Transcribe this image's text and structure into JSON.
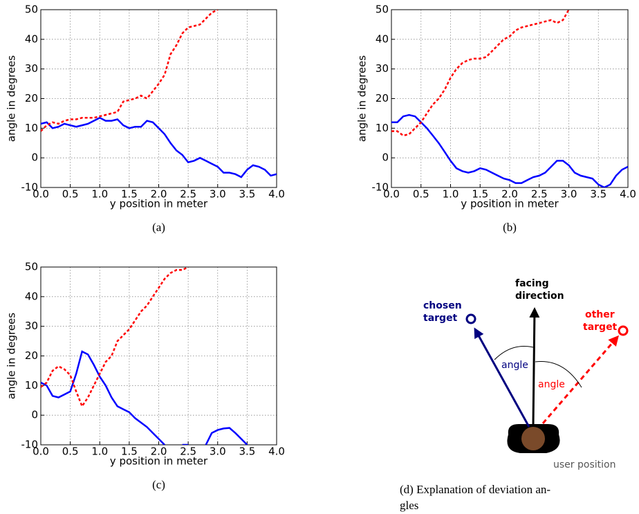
{
  "chart_data": [
    {
      "type": "line",
      "xlabel": "y position in meter",
      "ylabel": "angle in degrees",
      "caption": "(a)",
      "x": [
        0,
        0.1,
        0.2,
        0.3,
        0.4,
        0.5,
        0.6,
        0.7,
        0.8,
        0.9,
        1.0,
        1.1,
        1.2,
        1.3,
        1.4,
        1.5,
        1.6,
        1.7,
        1.8,
        1.9,
        2.0,
        2.1,
        2.2,
        2.3,
        2.4,
        2.5,
        2.6,
        2.7,
        2.8,
        2.9,
        3.0,
        3.1,
        3.2,
        3.3,
        3.4,
        3.5,
        3.6,
        3.7,
        3.8,
        3.9,
        4.0
      ],
      "series": [
        {
          "color": "#0000ff",
          "style": "solid",
          "values": [
            11.5,
            12,
            10,
            10.5,
            11.5,
            11,
            10.5,
            11,
            11.5,
            12.5,
            13.5,
            12.5,
            12.5,
            13,
            11,
            10,
            10.5,
            10.5,
            12.5,
            12,
            10,
            8,
            5,
            2.5,
            1,
            -1.5,
            -1,
            0,
            -1,
            -2,
            -3,
            -5,
            -5,
            -5.5,
            -6.5,
            -4,
            -2.5,
            -3,
            -4,
            -6,
            -5.5
          ]
        },
        {
          "color": "#ff0000",
          "style": "dashed",
          "values": [
            9,
            11,
            12,
            11.5,
            12.5,
            13,
            13,
            13.5,
            13.5,
            13.5,
            14,
            14.5,
            15,
            15.5,
            19,
            19.5,
            20,
            21,
            20,
            22.5,
            25,
            28,
            35,
            38,
            42,
            44,
            44.5,
            45,
            47,
            49,
            50,
            null,
            null,
            null,
            null,
            null,
            null,
            null,
            null,
            null,
            null
          ]
        }
      ],
      "xlim": [
        0,
        4
      ],
      "ylim": [
        -10,
        50
      ],
      "xticks": [
        {
          "value": 0,
          "label": "0.0"
        },
        {
          "value": 0.5,
          "label": "0.5"
        },
        {
          "value": 1,
          "label": "1.0"
        },
        {
          "value": 1.5,
          "label": "1.5"
        },
        {
          "value": 2,
          "label": "2.0"
        },
        {
          "value": 2.5,
          "label": "2.5"
        },
        {
          "value": 3,
          "label": "3.0"
        },
        {
          "value": 3.5,
          "label": "3.5"
        },
        {
          "value": 4,
          "label": "4.0"
        }
      ],
      "yticks": [
        -10,
        0,
        10,
        20,
        30,
        40,
        50
      ],
      "grid": true
    },
    {
      "type": "line",
      "xlabel": "y position in meter",
      "ylabel": "angle in degrees",
      "caption": "(b)",
      "x": [
        0,
        0.1,
        0.2,
        0.3,
        0.4,
        0.5,
        0.6,
        0.7,
        0.8,
        0.9,
        1.0,
        1.1,
        1.2,
        1.3,
        1.4,
        1.5,
        1.6,
        1.7,
        1.8,
        1.9,
        2.0,
        2.1,
        2.2,
        2.3,
        2.4,
        2.5,
        2.6,
        2.7,
        2.8,
        2.9,
        3.0,
        3.1,
        3.2,
        3.3,
        3.4,
        3.5,
        3.6,
        3.7,
        3.8,
        3.9,
        4.0
      ],
      "series": [
        {
          "color": "#0000ff",
          "style": "solid",
          "values": [
            12,
            12,
            14,
            14.5,
            14,
            12,
            10,
            7.5,
            5,
            2,
            -1,
            -3.5,
            -4.5,
            -5,
            -4.5,
            -3.5,
            -4,
            -5,
            -6,
            -7,
            -7.5,
            -8.5,
            -8.5,
            -7.5,
            -6.5,
            -6,
            -5,
            -3,
            -1,
            -1,
            -2.5,
            -5,
            -6,
            -6.5,
            -7,
            -9,
            -10,
            -9,
            -6,
            -4,
            -3
          ]
        },
        {
          "color": "#ff0000",
          "style": "dashed",
          "values": [
            9,
            9,
            7.5,
            8,
            10,
            12,
            15,
            18,
            20,
            23,
            27,
            30,
            32,
            33,
            33.5,
            33.5,
            34,
            36,
            38,
            40,
            41,
            43,
            44,
            44.5,
            45,
            45.5,
            46,
            46.5,
            45.5,
            46.5,
            50,
            null,
            null,
            null,
            null,
            null,
            null,
            null,
            null,
            null,
            null
          ]
        }
      ],
      "xlim": [
        0,
        4
      ],
      "ylim": [
        -10,
        50
      ],
      "xticks": [
        {
          "value": 0,
          "label": "0.0"
        },
        {
          "value": 0.5,
          "label": "0.5"
        },
        {
          "value": 1,
          "label": "1.0"
        },
        {
          "value": 1.5,
          "label": "1.5"
        },
        {
          "value": 2,
          "label": "2.0"
        },
        {
          "value": 2.5,
          "label": "2.5"
        },
        {
          "value": 3,
          "label": "3.0"
        },
        {
          "value": 3.5,
          "label": "3.5"
        },
        {
          "value": 4,
          "label": "4.0"
        }
      ],
      "yticks": [
        -10,
        0,
        10,
        20,
        30,
        40,
        50
      ],
      "grid": true
    },
    {
      "type": "line",
      "xlabel": "y position in meter",
      "ylabel": "angle in degrees",
      "caption": "(c)",
      "x": [
        0,
        0.1,
        0.2,
        0.3,
        0.4,
        0.5,
        0.6,
        0.7,
        0.8,
        0.9,
        1.0,
        1.1,
        1.2,
        1.3,
        1.4,
        1.5,
        1.6,
        1.7,
        1.8,
        1.9,
        2.0,
        2.1,
        2.2,
        2.3,
        2.4,
        2.5,
        2.6,
        2.7,
        2.8,
        2.9,
        3.0,
        3.1,
        3.2,
        3.3,
        3.4,
        3.5,
        3.6,
        3.7,
        3.8,
        3.9,
        4.0
      ],
      "series": [
        {
          "color": "#0000ff",
          "style": "solid",
          "values": [
            11,
            10,
            6.5,
            6,
            7,
            8,
            14,
            21.5,
            20.5,
            17,
            13,
            10,
            6,
            3,
            2,
            1,
            -1,
            -2.5,
            -4,
            -6,
            -8,
            -10,
            null,
            null,
            -10,
            -10,
            null,
            null,
            -10,
            -6,
            -5,
            -4.5,
            -4.3,
            -6,
            -8,
            -10,
            null,
            null,
            null,
            null,
            null
          ]
        },
        {
          "color": "#ff0000",
          "style": "dashed",
          "values": [
            9.5,
            11,
            15,
            16.5,
            15.5,
            13.5,
            8,
            3,
            6,
            10,
            14,
            18,
            20,
            25,
            27,
            29,
            32,
            35,
            37,
            40,
            43,
            46,
            48,
            49,
            49,
            50,
            null,
            null,
            null,
            null,
            null,
            null,
            null,
            null,
            null,
            null,
            null,
            null,
            null,
            null,
            null
          ]
        }
      ],
      "xlim": [
        0,
        4
      ],
      "ylim": [
        -10,
        50
      ],
      "xticks": [
        {
          "value": 0,
          "label": "0.0"
        },
        {
          "value": 0.5,
          "label": "0.5"
        },
        {
          "value": 1,
          "label": "1.0"
        },
        {
          "value": 1.5,
          "label": "1.5"
        },
        {
          "value": 2,
          "label": "2.0"
        },
        {
          "value": 2.5,
          "label": "2.5"
        },
        {
          "value": 3,
          "label": "3.0"
        },
        {
          "value": 3.5,
          "label": "3.5"
        },
        {
          "value": 4,
          "label": "4.0"
        }
      ],
      "yticks": [
        -10,
        0,
        10,
        20,
        30,
        40,
        50
      ],
      "grid": true
    }
  ],
  "diagram": {
    "facing": [
      "facing",
      "direction"
    ],
    "chosen": [
      "chosen",
      "target"
    ],
    "other": [
      "other",
      "target"
    ],
    "angle_chosen": "angle",
    "angle_other": "angle",
    "user": "user position",
    "caption": [
      "(d) Explanation of deviation an-",
      "gles"
    ]
  }
}
